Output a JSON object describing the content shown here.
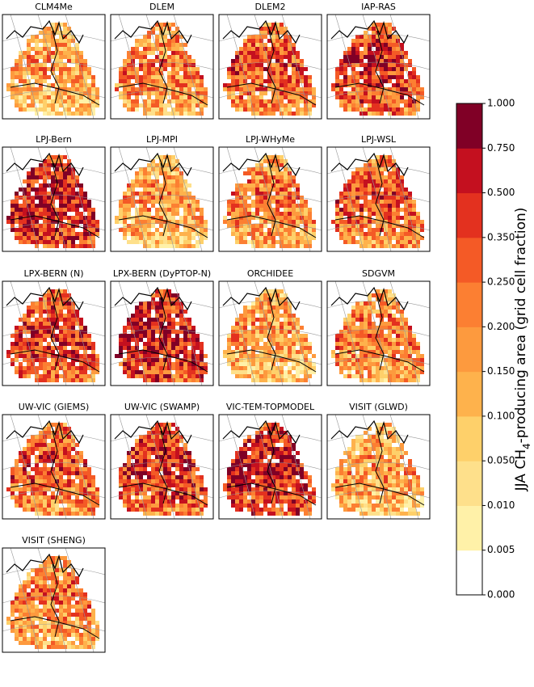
{
  "panels": [
    {
      "title": "CLM4Me"
    },
    {
      "title": "DLEM"
    },
    {
      "title": "DLEM2"
    },
    {
      "title": "IAP-RAS"
    },
    {
      "title": "LPJ-Bern"
    },
    {
      "title": "LPJ-MPI"
    },
    {
      "title": "LPJ-WHyMe"
    },
    {
      "title": "LPJ-WSL"
    },
    {
      "title": "LPX-BERN (N)"
    },
    {
      "title": "LPX-BERN (DyPTOP-N)"
    },
    {
      "title": "ORCHIDEE"
    },
    {
      "title": "SDGVM"
    },
    {
      "title": "UW-VIC (GIEMS)"
    },
    {
      "title": "UW-VIC (SWAMP)"
    },
    {
      "title": "VIC-TEM-TOPMODEL"
    },
    {
      "title": "VISIT (GLWD)"
    },
    {
      "title": "VISIT (SHENG)"
    }
  ],
  "colorbar": {
    "label_main": "JJA CH",
    "label_sub": "4",
    "label_rest": "-producing area (grid cell fraction)",
    "ticks": [
      {
        "value": 0,
        "label": "0.000"
      },
      {
        "value": 0.005,
        "label": "0.005"
      },
      {
        "value": 0.01,
        "label": "0.010"
      },
      {
        "value": 0.05,
        "label": "0.050"
      },
      {
        "value": 0.1,
        "label": "0.100"
      },
      {
        "value": 0.15,
        "label": "0.150"
      },
      {
        "value": 0.2,
        "label": "0.200"
      },
      {
        "value": 0.25,
        "label": "0.250"
      },
      {
        "value": 0.35,
        "label": "0.350"
      },
      {
        "value": 0.5,
        "label": "0.500"
      },
      {
        "value": 0.75,
        "label": "0.750"
      },
      {
        "value": 1,
        "label": "1.000"
      }
    ],
    "colors": [
      "#ffffff",
      "#fff1a8",
      "#fee08b",
      "#fed06a",
      "#feb24c",
      "#fd9a3e",
      "#fc7f32",
      "#f45a26",
      "#e3311f",
      "#c4101f",
      "#800026"
    ]
  }
}
